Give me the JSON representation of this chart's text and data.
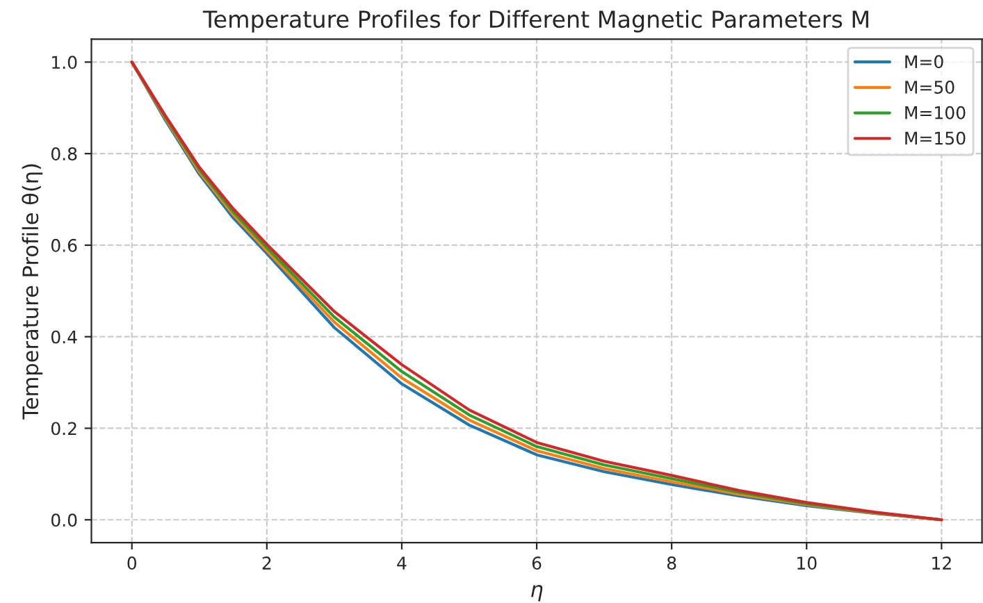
{
  "chart_data": {
    "type": "line",
    "title": "Temperature Profiles for Different Magnetic Parameters M",
    "xlabel": "η",
    "ylabel": "Temperature Profile θ(η)",
    "x": [
      0,
      0.5,
      1,
      1.5,
      2,
      3,
      4,
      5,
      6,
      7,
      8,
      9,
      10,
      11,
      12
    ],
    "series": [
      {
        "name": "M=0",
        "color": "#1f77b4",
        "values": [
          1.0,
          0.872,
          0.755,
          0.66,
          0.582,
          0.42,
          0.297,
          0.207,
          0.142,
          0.105,
          0.077,
          0.052,
          0.031,
          0.014,
          0.0
        ]
      },
      {
        "name": "M=50",
        "color": "#ff7f0e",
        "values": [
          1.0,
          0.876,
          0.76,
          0.667,
          0.588,
          0.432,
          0.31,
          0.218,
          0.151,
          0.112,
          0.083,
          0.056,
          0.033,
          0.015,
          0.0
        ]
      },
      {
        "name": "M=100",
        "color": "#2ca02c",
        "values": [
          1.0,
          0.879,
          0.765,
          0.673,
          0.595,
          0.443,
          0.324,
          0.229,
          0.16,
          0.12,
          0.09,
          0.06,
          0.035,
          0.016,
          0.0
        ]
      },
      {
        "name": "M=150",
        "color": "#d62728",
        "values": [
          1.0,
          0.882,
          0.77,
          0.68,
          0.602,
          0.455,
          0.339,
          0.24,
          0.169,
          0.128,
          0.097,
          0.064,
          0.038,
          0.017,
          0.0
        ]
      }
    ],
    "xlim": [
      -0.6,
      12.6
    ],
    "ylim": [
      -0.05,
      1.05
    ],
    "xticks": [
      0,
      2,
      4,
      6,
      8,
      10,
      12
    ],
    "yticks": [
      {
        "value": 0,
        "label": "0.0"
      },
      {
        "value": 0.2,
        "label": "0.2"
      },
      {
        "value": 0.4,
        "label": "0.4"
      },
      {
        "value": 0.6,
        "label": "0.6"
      },
      {
        "value": 0.8,
        "label": "0.8"
      },
      {
        "value": 1,
        "label": "1.0"
      }
    ],
    "grid": true,
    "legend": "top right",
    "line_style": "solid",
    "marker": "none"
  }
}
